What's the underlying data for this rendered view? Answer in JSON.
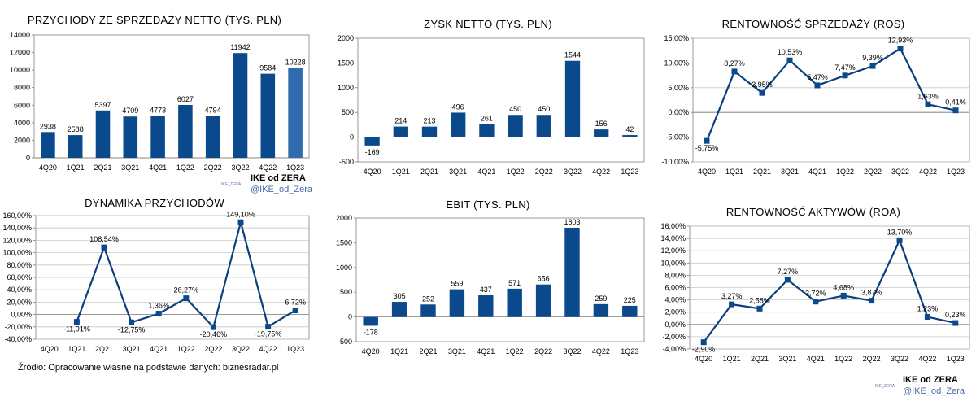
{
  "chart_data": [
    {
      "id": "c1",
      "type": "bar",
      "title": "PRZYCHODY ZE SPRZEDAŻY NETTO (TYS. PLN)",
      "categories": [
        "4Q20",
        "1Q21",
        "2Q21",
        "3Q21",
        "4Q21",
        "1Q22",
        "2Q22",
        "3Q22",
        "4Q22",
        "1Q23"
      ],
      "values": [
        2938,
        2588,
        5397,
        4709,
        4773,
        6027,
        4794,
        11942,
        9584,
        10228
      ],
      "ylim": [
        0,
        14000
      ],
      "yticks": [
        0,
        2000,
        4000,
        6000,
        8000,
        10000,
        12000,
        14000
      ],
      "highlight_last": true,
      "grid": false
    },
    {
      "id": "c2",
      "type": "bar",
      "title": "ZYSK NETTO (TYS. PLN)",
      "categories": [
        "4Q20",
        "1Q21",
        "2Q21",
        "3Q21",
        "4Q21",
        "1Q22",
        "2Q22",
        "3Q22",
        "4Q22",
        "1Q23"
      ],
      "values": [
        -169,
        214,
        213,
        496,
        261,
        450,
        450,
        1544,
        156,
        42
      ],
      "ylim": [
        -500,
        2000
      ],
      "yticks": [
        -500,
        0,
        500,
        1000,
        1500,
        2000
      ],
      "grid": false
    },
    {
      "id": "c3",
      "type": "line",
      "title": "RENTOWNOŚĆ SPRZEDAŻY (ROS)",
      "categories": [
        "4Q20",
        "1Q21",
        "2Q21",
        "3Q21",
        "4Q21",
        "1Q22",
        "2Q22",
        "3Q22",
        "4Q22",
        "1Q23"
      ],
      "values": [
        -5.75,
        8.27,
        3.95,
        10.53,
        5.47,
        7.47,
        9.39,
        12.93,
        1.63,
        0.41
      ],
      "labels": [
        "-5,75%",
        "8,27%",
        "3,95%",
        "10,53%",
        "5,47%",
        "7,47%",
        "9,39%",
        "12,93%",
        "1,63%",
        "0,41%"
      ],
      "ylim": [
        -10,
        15
      ],
      "yticks": [
        -10,
        -5,
        0,
        5,
        10,
        15
      ],
      "yticklabels": [
        "-10,00%",
        "-5,00%",
        "0,00%",
        "5,00%",
        "10,00%",
        "15,00%"
      ],
      "grid": true
    },
    {
      "id": "c4",
      "type": "line",
      "title": "DYNAMIKA PRZYCHODÓW",
      "categories": [
        "4Q20",
        "1Q21",
        "2Q21",
        "3Q21",
        "4Q21",
        "1Q22",
        "2Q22",
        "3Q22",
        "4Q22",
        "1Q23"
      ],
      "values": [
        null,
        -11.91,
        108.54,
        -12.75,
        1.36,
        26.27,
        -20.46,
        149.1,
        -19.75,
        6.72
      ],
      "labels": [
        "",
        "-11,91%",
        "108,54%",
        "-12,75%",
        "1,36%",
        "26,27%",
        "-20,46%",
        "149,10%",
        "-19,75%",
        "6,72%"
      ],
      "ylim": [
        -40,
        160
      ],
      "yticks": [
        -40,
        -20,
        0,
        20,
        40,
        60,
        80,
        100,
        120,
        140,
        160
      ],
      "yticklabels": [
        "-40,00%",
        "-20,00%",
        "0,00%",
        "20,00%",
        "40,00%",
        "60,00%",
        "80,00%",
        "100,00%",
        "120,00%",
        "140,00%",
        "160,00%"
      ],
      "grid": true
    },
    {
      "id": "c5",
      "type": "bar",
      "title": "EBIT (TYS. PLN)",
      "categories": [
        "4Q20",
        "1Q21",
        "2Q21",
        "3Q21",
        "4Q21",
        "1Q22",
        "2Q22",
        "3Q22",
        "4Q22",
        "1Q23"
      ],
      "values": [
        -178,
        305,
        252,
        559,
        437,
        571,
        656,
        1803,
        259,
        225
      ],
      "ylim": [
        -500,
        2000
      ],
      "yticks": [
        -500,
        0,
        500,
        1000,
        1500,
        2000
      ],
      "grid": false
    },
    {
      "id": "c6",
      "type": "line",
      "title": "RENTOWNOŚĆ AKTYWÓW (ROA)",
      "categories": [
        "4Q20",
        "1Q21",
        "2Q21",
        "3Q21",
        "4Q21",
        "1Q22",
        "2Q22",
        "3Q22",
        "4Q22",
        "1Q23"
      ],
      "values": [
        -2.9,
        3.27,
        2.58,
        7.27,
        3.72,
        4.68,
        3.87,
        13.7,
        1.23,
        0.23
      ],
      "labels": [
        "-2,90%",
        "3,27%",
        "2,58%",
        "7,27%",
        "3,72%",
        "4,68%",
        "3,87%",
        "13,70%",
        "1,23%",
        "0,23%"
      ],
      "ylim": [
        -4,
        16
      ],
      "yticks": [
        -4,
        -2,
        0,
        2,
        4,
        6,
        8,
        10,
        12,
        14,
        16
      ],
      "yticklabels": [
        "-4,00%",
        "-2,00%",
        "0,00%",
        "2,00%",
        "4,00%",
        "6,00%",
        "8,00%",
        "10,00%",
        "12,00%",
        "14,00%",
        "16,00%"
      ],
      "grid": true
    }
  ],
  "branding": [
    {
      "name": "IKE od ZERA",
      "handle": "@IKE_od_Zera",
      "mini": "IKE_ZERA"
    },
    {
      "name": "IKE od ZERA",
      "handle": "@IKE_od_Zera",
      "mini": "IKE_ZERA"
    }
  ],
  "source": "Źródło: Opracowanie własne na podstawie danych: biznesradar.pl",
  "colors": {
    "bar": "#0a4a8c",
    "bar_highlight": "#2f6bad",
    "line": "#0c3f7d",
    "marker": "#0a4a8c",
    "grid": "#c8c8c8",
    "axis": "#808080",
    "text": "#000000"
  }
}
